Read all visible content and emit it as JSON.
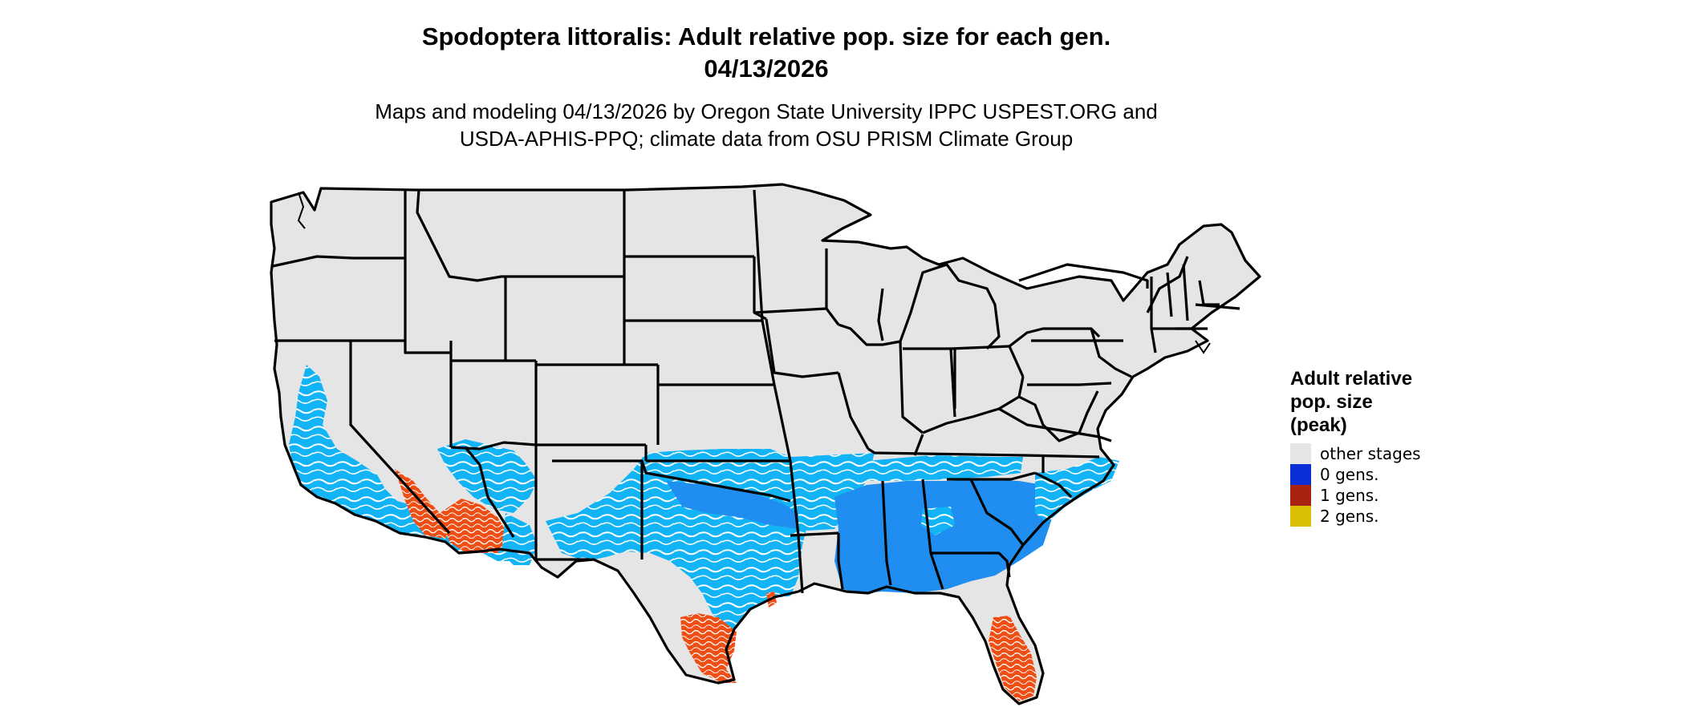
{
  "title": {
    "line1": "Spodoptera littoralis: Adult relative pop. size for each gen.",
    "line2": "04/13/2026"
  },
  "subtitle": {
    "line1": "Maps and modeling 04/13/2026 by Oregon State University IPPC USPEST.ORG and",
    "line2": "USDA-APHIS-PPQ; climate data from OSU PRISM Climate Group"
  },
  "legend": {
    "title_lines": [
      "Adult relative",
      "pop. size",
      "(peak)"
    ],
    "items": [
      {
        "label": "other stages",
        "color": "#e5e5e5"
      },
      {
        "label": "0 gens.",
        "color": "#0a2fd9"
      },
      {
        "label": "1 gens.",
        "color": "#a8230f"
      },
      {
        "label": "2 gens.",
        "color": "#d9c005"
      }
    ]
  },
  "map_colors": {
    "land": "#e5e5e5",
    "border": "#000000",
    "light_blue": "#12b4f5",
    "mid_blue": "#1f8ef0",
    "orange": "#ef4f14"
  }
}
